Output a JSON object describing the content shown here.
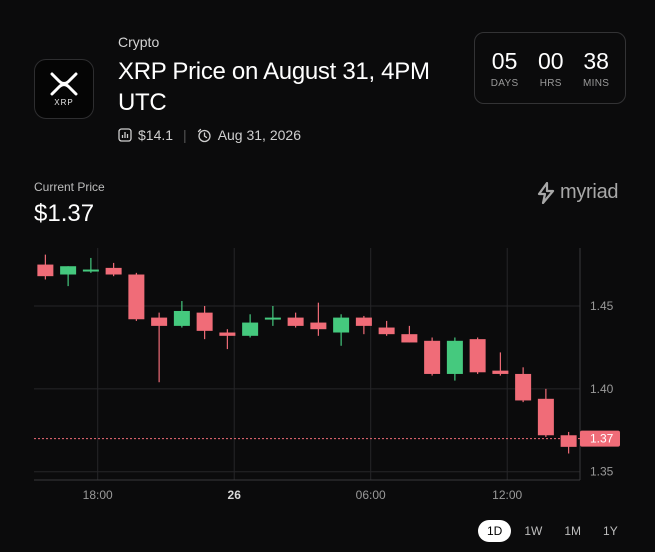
{
  "market": {
    "category": "Crypto",
    "title": "XRP Price on August 31, 4PM UTC",
    "logo_text": "XRP",
    "volume": "$14.1",
    "date": "Aug 31, 2026"
  },
  "countdown": [
    {
      "value": "05",
      "label": "DAYS"
    },
    {
      "value": "00",
      "label": "HRS"
    },
    {
      "value": "38",
      "label": "MINS"
    }
  ],
  "current_price": {
    "label": "Current Price",
    "value": "$1.37"
  },
  "brand": "myriad",
  "ranges": [
    {
      "label": "1D",
      "active": true
    },
    {
      "label": "1W",
      "active": false
    },
    {
      "label": "1M",
      "active": false
    },
    {
      "label": "1Y",
      "active": false
    }
  ],
  "colors": {
    "up": "#45c97e",
    "down": "#f06c78",
    "grid": "#262628",
    "axis_text": "#9a9a9a"
  },
  "chart_data": {
    "type": "candlestick",
    "x_ticks": [
      {
        "label": "18:00",
        "index": 2.3,
        "bold": false
      },
      {
        "label": "26",
        "index": 8.3,
        "bold": true
      },
      {
        "label": "06:00",
        "index": 14.3,
        "bold": false
      },
      {
        "label": "12:00",
        "index": 20.3,
        "bold": false
      }
    ],
    "y_ticks": [
      1.35,
      1.4,
      1.45
    ],
    "ylim": [
      1.345,
      1.485
    ],
    "current_value": 1.37,
    "current_label": "1.37",
    "candles": [
      {
        "o": 1.475,
        "h": 1.481,
        "l": 1.466,
        "c": 1.468
      },
      {
        "o": 1.469,
        "h": 1.474,
        "l": 1.462,
        "c": 1.474
      },
      {
        "o": 1.472,
        "h": 1.479,
        "l": 1.47,
        "c": 1.472
      },
      {
        "o": 1.473,
        "h": 1.476,
        "l": 1.468,
        "c": 1.469
      },
      {
        "o": 1.469,
        "h": 1.47,
        "l": 1.441,
        "c": 1.442
      },
      {
        "o": 1.443,
        "h": 1.446,
        "l": 1.404,
        "c": 1.438
      },
      {
        "o": 1.438,
        "h": 1.453,
        "l": 1.437,
        "c": 1.447
      },
      {
        "o": 1.446,
        "h": 1.45,
        "l": 1.43,
        "c": 1.435
      },
      {
        "o": 1.434,
        "h": 1.436,
        "l": 1.424,
        "c": 1.432
      },
      {
        "o": 1.432,
        "h": 1.445,
        "l": 1.431,
        "c": 1.44
      },
      {
        "o": 1.442,
        "h": 1.45,
        "l": 1.438,
        "c": 1.443
      },
      {
        "o": 1.443,
        "h": 1.446,
        "l": 1.437,
        "c": 1.438
      },
      {
        "o": 1.44,
        "h": 1.452,
        "l": 1.432,
        "c": 1.436
      },
      {
        "o": 1.434,
        "h": 1.445,
        "l": 1.426,
        "c": 1.443
      },
      {
        "o": 1.443,
        "h": 1.444,
        "l": 1.433,
        "c": 1.438
      },
      {
        "o": 1.437,
        "h": 1.441,
        "l": 1.432,
        "c": 1.433
      },
      {
        "o": 1.433,
        "h": 1.438,
        "l": 1.428,
        "c": 1.428
      },
      {
        "o": 1.429,
        "h": 1.431,
        "l": 1.408,
        "c": 1.409
      },
      {
        "o": 1.409,
        "h": 1.431,
        "l": 1.405,
        "c": 1.429
      },
      {
        "o": 1.43,
        "h": 1.431,
        "l": 1.409,
        "c": 1.41
      },
      {
        "o": 1.411,
        "h": 1.422,
        "l": 1.408,
        "c": 1.409
      },
      {
        "o": 1.409,
        "h": 1.413,
        "l": 1.392,
        "c": 1.393
      },
      {
        "o": 1.394,
        "h": 1.4,
        "l": 1.371,
        "c": 1.372
      },
      {
        "o": 1.372,
        "h": 1.374,
        "l": 1.361,
        "c": 1.365
      }
    ]
  }
}
